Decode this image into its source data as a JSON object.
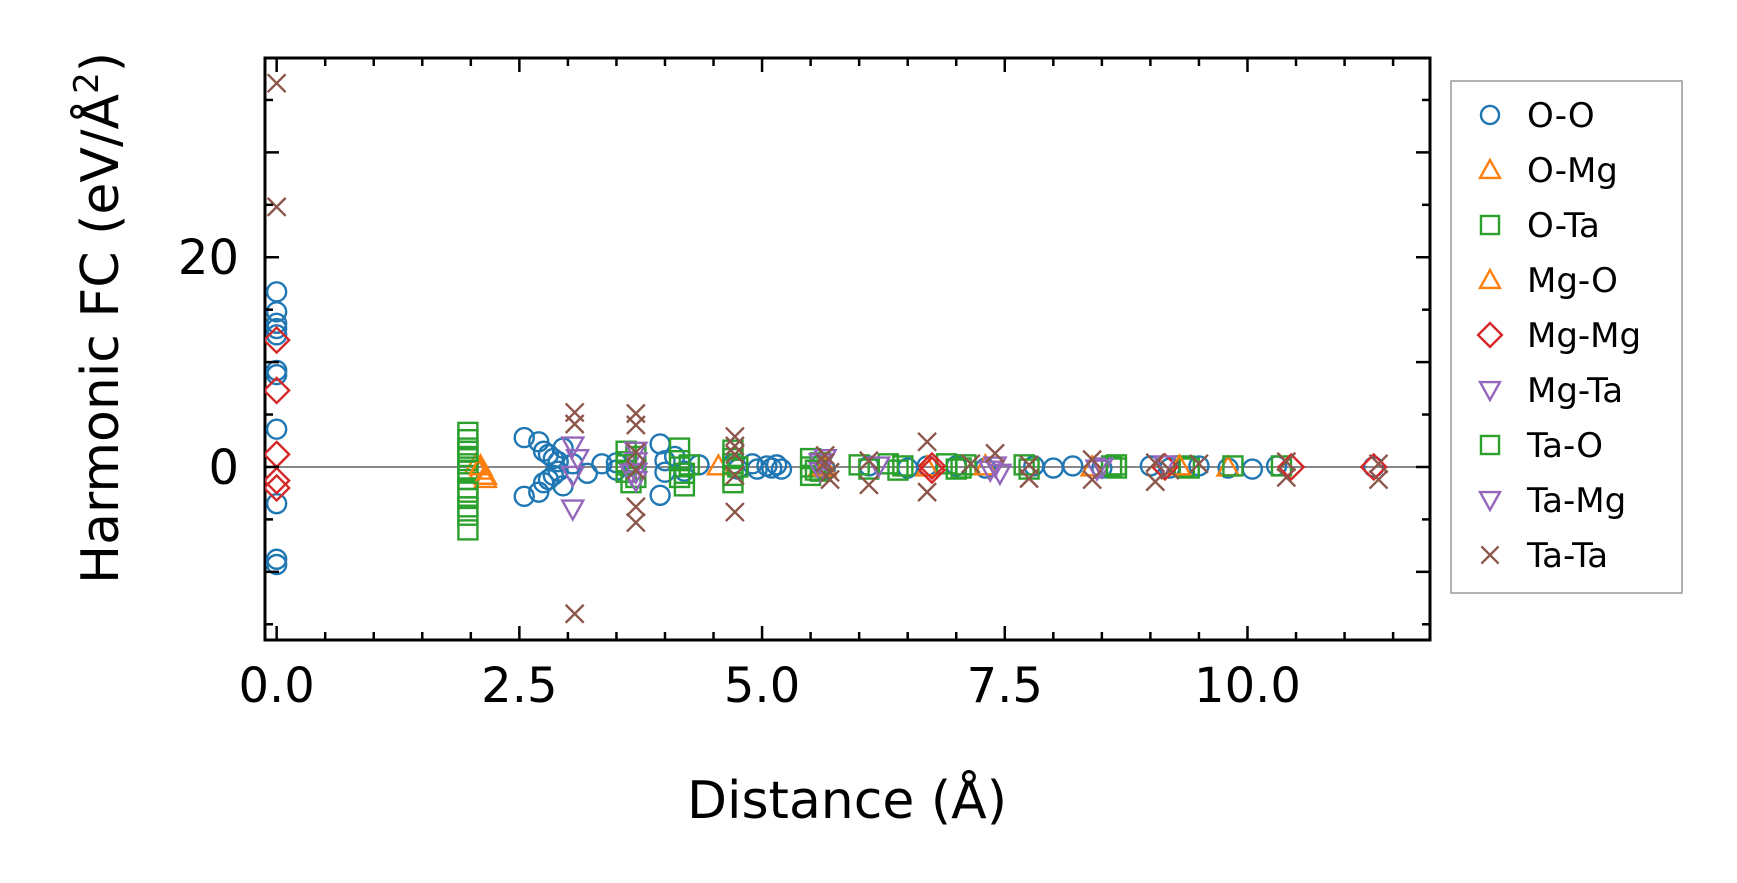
{
  "chart_data": {
    "type": "scatter",
    "title": "",
    "xlabel": "Distance (Å)",
    "ylabel_main": "Harmonic FC (eV/Å",
    "ylabel_sup": "2",
    "ylabel_close": ")",
    "xlim": [
      -0.12,
      11.88
    ],
    "ylim": [
      -16.5,
      39
    ],
    "xticks": [
      0.0,
      2.5,
      5.0,
      7.5,
      10.0
    ],
    "xtick_labels": [
      "0.0",
      "2.5",
      "5.0",
      "7.5",
      "10.0"
    ],
    "yticks": [
      0,
      20
    ],
    "ytick_labels": [
      "0",
      "20"
    ],
    "reference_line_y": 0,
    "legend_position": "outside-right",
    "series": [
      {
        "name": "O-O",
        "marker": "circle",
        "color": "#1f77b4",
        "points": [
          [
            0,
            16.7
          ],
          [
            0,
            14.8
          ],
          [
            0,
            13.7
          ],
          [
            0,
            13.2
          ],
          [
            0,
            12.6
          ],
          [
            0,
            9.2
          ],
          [
            0,
            8.8
          ],
          [
            0,
            3.6
          ],
          [
            0,
            -3.5
          ],
          [
            0,
            -8.8
          ],
          [
            0,
            -9.3
          ],
          [
            2.55,
            2.8
          ],
          [
            2.55,
            -2.8
          ],
          [
            2.7,
            2.4
          ],
          [
            2.7,
            -2.4
          ],
          [
            2.75,
            1.5
          ],
          [
            2.75,
            -1.5
          ],
          [
            2.8,
            1.2
          ],
          [
            2.8,
            -1.2
          ],
          [
            2.85,
            0.8
          ],
          [
            2.85,
            -0.8
          ],
          [
            2.9,
            0.5
          ],
          [
            2.9,
            -0.4
          ],
          [
            2.95,
            1.8
          ],
          [
            2.95,
            -1.8
          ],
          [
            3.05,
            0.3
          ],
          [
            3.2,
            -0.6
          ],
          [
            3.35,
            0.3
          ],
          [
            3.5,
            0.4
          ],
          [
            3.5,
            -0.3
          ],
          [
            3.95,
            2.2
          ],
          [
            3.95,
            -2.7
          ],
          [
            4.0,
            0.6
          ],
          [
            4.0,
            -0.5
          ],
          [
            4.1,
            1.0
          ],
          [
            4.2,
            -0.4
          ],
          [
            4.35,
            0.2
          ],
          [
            4.7,
            0.3
          ],
          [
            4.75,
            -0.2
          ],
          [
            4.9,
            0.3
          ],
          [
            4.95,
            -0.2
          ],
          [
            5.05,
            0.1
          ],
          [
            5.1,
            -0.1
          ],
          [
            5.15,
            0.2
          ],
          [
            5.2,
            -0.2
          ],
          [
            5.6,
            0.2
          ],
          [
            5.65,
            -0.2
          ],
          [
            6.1,
            0.1
          ],
          [
            6.5,
            -0.1
          ],
          [
            6.7,
            0.1
          ],
          [
            7.0,
            0.1
          ],
          [
            7.3,
            -0.1
          ],
          [
            7.8,
            0.1
          ],
          [
            8.0,
            -0.1
          ],
          [
            8.2,
            0.1
          ],
          [
            8.5,
            -0.1
          ],
          [
            9.0,
            0.1
          ],
          [
            9.2,
            -0.1
          ],
          [
            9.5,
            0.1
          ],
          [
            9.8,
            -0.1
          ],
          [
            10.05,
            -0.2
          ],
          [
            10.3,
            0.1
          ],
          [
            11.3,
            0
          ]
        ]
      },
      {
        "name": "O-Mg",
        "marker": "triangle-up",
        "color": "#ff7f0e",
        "points": [
          [
            2.05,
            0.2
          ],
          [
            2.1,
            -0.3
          ],
          [
            2.15,
            -1.1
          ],
          [
            4.55,
            0.1
          ],
          [
            5.6,
            0.1
          ],
          [
            6.7,
            0
          ],
          [
            8.4,
            0
          ],
          [
            9.8,
            0
          ]
        ]
      },
      {
        "name": "O-Ta",
        "marker": "square",
        "color": "#2ca02c",
        "points": [
          [
            1.97,
            3.3
          ],
          [
            1.97,
            2.6
          ],
          [
            1.97,
            1.8
          ],
          [
            1.97,
            1.0
          ],
          [
            1.97,
            0.3
          ],
          [
            1.97,
            -0.4
          ],
          [
            1.97,
            -1.2
          ],
          [
            1.97,
            -2.0
          ],
          [
            1.97,
            -3.0
          ],
          [
            1.97,
            -3.8
          ],
          [
            1.97,
            -4.6
          ],
          [
            1.97,
            -6.0
          ],
          [
            3.6,
            1.5
          ],
          [
            3.6,
            0.5
          ],
          [
            3.6,
            -0.5
          ],
          [
            3.65,
            -1.5
          ],
          [
            3.7,
            1.0
          ],
          [
            3.7,
            -1.0
          ],
          [
            4.15,
            1.8
          ],
          [
            4.15,
            0.6
          ],
          [
            4.2,
            -0.6
          ],
          [
            4.2,
            -1.8
          ],
          [
            4.25,
            0.2
          ],
          [
            4.7,
            1.6
          ],
          [
            4.7,
            0.8
          ],
          [
            4.7,
            -0.8
          ],
          [
            4.7,
            -1.5
          ],
          [
            4.75,
            0
          ],
          [
            5.5,
            0.8
          ],
          [
            5.5,
            0
          ],
          [
            5.5,
            -0.8
          ],
          [
            5.6,
            0.4
          ],
          [
            5.6,
            -0.4
          ],
          [
            6.0,
            0.2
          ],
          [
            6.1,
            -0.2
          ],
          [
            6.3,
            0.3
          ],
          [
            6.4,
            -0.3
          ],
          [
            6.9,
            0.3
          ],
          [
            7.0,
            -0.2
          ],
          [
            7.1,
            0.2
          ],
          [
            7.7,
            0.2
          ],
          [
            7.75,
            -0.2
          ],
          [
            8.6,
            0.1
          ],
          [
            8.65,
            -0.1
          ],
          [
            9.35,
            0.1
          ],
          [
            9.4,
            -0.1
          ],
          [
            9.85,
            0.1
          ],
          [
            10.35,
            0.1
          ]
        ]
      },
      {
        "name": "Mg-O",
        "marker": "triangle-up",
        "color": "#ff7f0e",
        "points": [
          [
            2.1,
            0.1
          ],
          [
            2.15,
            -0.8
          ],
          [
            5.65,
            0
          ],
          [
            7.3,
            0.1
          ],
          [
            9.3,
            0.1
          ]
        ]
      },
      {
        "name": "Mg-Mg",
        "marker": "diamond",
        "color": "#d62728",
        "points": [
          [
            0,
            12.1
          ],
          [
            0,
            7.3
          ],
          [
            0,
            1.2
          ],
          [
            0,
            -1.3
          ],
          [
            0,
            -2.0
          ],
          [
            6.75,
            0.1
          ],
          [
            6.75,
            -0.3
          ],
          [
            9.15,
            0
          ],
          [
            10.45,
            0
          ],
          [
            11.3,
            0
          ]
        ]
      },
      {
        "name": "Mg-Ta",
        "marker": "triangle-down",
        "color": "#9467bd",
        "points": [
          [
            3.05,
            2.0
          ],
          [
            3.05,
            -0.8
          ],
          [
            3.05,
            -4.0
          ],
          [
            3.7,
            1.5
          ],
          [
            3.7,
            0.5
          ],
          [
            3.7,
            -0.5
          ],
          [
            3.7,
            -1.3
          ],
          [
            5.6,
            0.4
          ],
          [
            5.6,
            -0.4
          ],
          [
            6.2,
            0.1
          ],
          [
            7.4,
            0.1
          ],
          [
            7.45,
            -0.6
          ],
          [
            8.5,
            0
          ],
          [
            9.15,
            0.2
          ]
        ]
      },
      {
        "name": "Ta-O",
        "marker": "square",
        "color": "#2ca02c",
        "points": [
          [
            1.97,
            1.5
          ],
          [
            1.97,
            -2.4
          ],
          [
            3.6,
            0.2
          ],
          [
            4.15,
            -1.0
          ],
          [
            4.7,
            0.3
          ],
          [
            5.55,
            -0.3
          ],
          [
            6.45,
            0.1
          ],
          [
            7.05,
            -0.1
          ],
          [
            8.65,
            0.2
          ]
        ]
      },
      {
        "name": "Ta-Mg",
        "marker": "triangle-down",
        "color": "#9467bd",
        "points": [
          [
            3.1,
            0.8
          ],
          [
            3.65,
            -0.6
          ],
          [
            5.65,
            0.8
          ],
          [
            7.35,
            -0.3
          ],
          [
            8.45,
            -0.2
          ]
        ]
      },
      {
        "name": "Ta-Ta",
        "marker": "x",
        "color": "#8c564b",
        "points": [
          [
            0,
            36.6
          ],
          [
            0,
            24.8
          ],
          [
            3.07,
            5.2
          ],
          [
            3.07,
            4.1
          ],
          [
            3.07,
            -14.0
          ],
          [
            3.7,
            5.1
          ],
          [
            3.7,
            4.0
          ],
          [
            3.7,
            1.4
          ],
          [
            3.7,
            -0.3
          ],
          [
            3.7,
            -3.8
          ],
          [
            3.7,
            -5.3
          ],
          [
            4.72,
            2.9
          ],
          [
            4.72,
            2.0
          ],
          [
            4.72,
            1.2
          ],
          [
            4.72,
            -0.8
          ],
          [
            4.72,
            -4.3
          ],
          [
            5.65,
            1.1
          ],
          [
            5.65,
            0.4
          ],
          [
            5.7,
            -0.5
          ],
          [
            5.7,
            -1.2
          ],
          [
            6.1,
            0.6
          ],
          [
            6.1,
            -1.7
          ],
          [
            6.7,
            2.4
          ],
          [
            6.7,
            -2.4
          ],
          [
            7.15,
            0.3
          ],
          [
            7.4,
            1.3
          ],
          [
            7.75,
            0.2
          ],
          [
            7.75,
            -1.1
          ],
          [
            8.4,
            0.7
          ],
          [
            8.4,
            -1.2
          ],
          [
            9.05,
            0.4
          ],
          [
            9.05,
            -1.4
          ],
          [
            9.2,
            -0.3
          ],
          [
            9.5,
            0.3
          ],
          [
            10.4,
            0.5
          ],
          [
            10.4,
            -1.0
          ],
          [
            11.35,
            0.3
          ],
          [
            11.35,
            -1.2
          ]
        ]
      }
    ]
  }
}
